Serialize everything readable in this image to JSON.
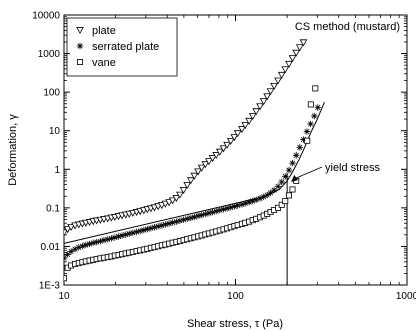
{
  "chart_data": {
    "type": "scatter",
    "title": "",
    "annotation_method": "CS method (mustard)",
    "annotation_yield": "yield stress",
    "xlabel": "Shear stress, τ (Pa)",
    "ylabel": "Deformation, γ",
    "x_scale": "log",
    "y_scale": "log",
    "xlim": [
      10,
      1000
    ],
    "ylim": [
      0.001,
      10000
    ],
    "x_ticks": [
      {
        "value": 10,
        "label": "10"
      },
      {
        "value": 100,
        "label": "100"
      },
      {
        "value": 1000,
        "label": "1000"
      }
    ],
    "y_ticks": [
      {
        "value": 0.001,
        "label": "1E-3"
      },
      {
        "value": 0.01,
        "label": "0.01"
      },
      {
        "value": 0.1,
        "label": "0.1"
      },
      {
        "value": 1,
        "label": "1"
      },
      {
        "value": 10,
        "label": "10"
      },
      {
        "value": 100,
        "label": "100"
      },
      {
        "value": 1000,
        "label": "1000"
      },
      {
        "value": 10000,
        "label": "10000"
      }
    ],
    "grid": false,
    "legend_position": "top-left",
    "yield_stress": 200,
    "series": [
      {
        "name": "plate",
        "marker": "triangle-down",
        "points": [
          [
            10,
            0.023
          ],
          [
            10.5,
            0.028
          ],
          [
            11,
            0.032
          ],
          [
            11.6,
            0.035
          ],
          [
            12.2,
            0.037
          ],
          [
            12.8,
            0.039
          ],
          [
            13.4,
            0.041
          ],
          [
            14.1,
            0.043
          ],
          [
            14.8,
            0.045
          ],
          [
            15.5,
            0.047
          ],
          [
            16.3,
            0.049
          ],
          [
            17.1,
            0.051
          ],
          [
            18,
            0.053
          ],
          [
            18.9,
            0.056
          ],
          [
            19.8,
            0.058
          ],
          [
            20.8,
            0.061
          ],
          [
            21.8,
            0.064
          ],
          [
            22.9,
            0.067
          ],
          [
            24,
            0.07
          ],
          [
            25.2,
            0.074
          ],
          [
            26.5,
            0.078
          ],
          [
            27.8,
            0.082
          ],
          [
            29.2,
            0.087
          ],
          [
            30.6,
            0.092
          ],
          [
            32.1,
            0.097
          ],
          [
            33.7,
            0.103
          ],
          [
            35.4,
            0.11
          ],
          [
            37.2,
            0.118
          ],
          [
            39,
            0.128
          ],
          [
            41,
            0.14
          ],
          [
            43,
            0.156
          ],
          [
            45.2,
            0.18
          ],
          [
            47.4,
            0.22
          ],
          [
            49.8,
            0.29
          ],
          [
            52.3,
            0.39
          ],
          [
            54.9,
            0.52
          ],
          [
            57.6,
            0.68
          ],
          [
            60.5,
            0.88
          ],
          [
            63.5,
            1.1
          ],
          [
            66.7,
            1.35
          ],
          [
            70,
            1.62
          ],
          [
            73.5,
            1.95
          ],
          [
            77.2,
            2.35
          ],
          [
            81,
            2.85
          ],
          [
            85.1,
            3.5
          ],
          [
            89.3,
            4.3
          ],
          [
            93.8,
            5.4
          ],
          [
            98.5,
            6.8
          ],
          [
            103,
            8.6
          ],
          [
            109,
            11
          ],
          [
            114,
            14
          ],
          [
            120,
            18
          ],
          [
            126,
            24
          ],
          [
            132,
            32
          ],
          [
            139,
            43
          ],
          [
            146,
            58
          ],
          [
            153,
            78
          ],
          [
            160,
            105
          ],
          [
            168,
            145
          ],
          [
            177,
            200
          ],
          [
            186,
            280
          ],
          [
            195,
            390
          ],
          [
            205,
            540
          ],
          [
            215,
            760
          ],
          [
            226,
            1050
          ],
          [
            237,
            1450
          ],
          [
            249,
            1950
          ]
        ]
      },
      {
        "name": "serrated plate",
        "marker": "asterisk",
        "points": [
          [
            10,
            0.005
          ],
          [
            10.5,
            0.0062
          ],
          [
            11,
            0.0074
          ],
          [
            11.6,
            0.0085
          ],
          [
            12.2,
            0.0094
          ],
          [
            12.8,
            0.0102
          ],
          [
            13.4,
            0.0109
          ],
          [
            14.1,
            0.0116
          ],
          [
            14.8,
            0.0123
          ],
          [
            15.5,
            0.013
          ],
          [
            16.3,
            0.0137
          ],
          [
            17.1,
            0.0145
          ],
          [
            18,
            0.0153
          ],
          [
            18.9,
            0.0162
          ],
          [
            19.8,
            0.0171
          ],
          [
            20.8,
            0.0181
          ],
          [
            21.8,
            0.0191
          ],
          [
            22.9,
            0.0202
          ],
          [
            24,
            0.0213
          ],
          [
            25.2,
            0.0225
          ],
          [
            26.5,
            0.0238
          ],
          [
            27.8,
            0.0251
          ],
          [
            29.2,
            0.0266
          ],
          [
            30.6,
            0.0281
          ],
          [
            32.1,
            0.0297
          ],
          [
            33.7,
            0.0314
          ],
          [
            35.4,
            0.0332
          ],
          [
            37.2,
            0.0351
          ],
          [
            39,
            0.0371
          ],
          [
            41,
            0.0392
          ],
          [
            43,
            0.0415
          ],
          [
            45.2,
            0.0439
          ],
          [
            47.4,
            0.0464
          ],
          [
            49.8,
            0.0491
          ],
          [
            52.3,
            0.052
          ],
          [
            54.9,
            0.055
          ],
          [
            57.6,
            0.058
          ],
          [
            60.5,
            0.062
          ],
          [
            63.5,
            0.065
          ],
          [
            66.7,
            0.069
          ],
          [
            70,
            0.073
          ],
          [
            73.5,
            0.077
          ],
          [
            77.2,
            0.082
          ],
          [
            81,
            0.087
          ],
          [
            85.1,
            0.092
          ],
          [
            89.3,
            0.097
          ],
          [
            93.8,
            0.103
          ],
          [
            98.5,
            0.109
          ],
          [
            103,
            0.116
          ],
          [
            109,
            0.123
          ],
          [
            114,
            0.131
          ],
          [
            120,
            0.14
          ],
          [
            126,
            0.15
          ],
          [
            132,
            0.162
          ],
          [
            139,
            0.176
          ],
          [
            146,
            0.193
          ],
          [
            153,
            0.215
          ],
          [
            160,
            0.245
          ],
          [
            168,
            0.29
          ],
          [
            177,
            0.36
          ],
          [
            186,
            0.47
          ],
          [
            195,
            0.65
          ],
          [
            205,
            0.95
          ],
          [
            215,
            1.45
          ],
          [
            226,
            2.3
          ],
          [
            237,
            3.7
          ],
          [
            249,
            5.9
          ],
          [
            261,
            9.5
          ],
          [
            274,
            15
          ],
          [
            288,
            24
          ],
          [
            302,
            40
          ]
        ]
      },
      {
        "name": "vane",
        "marker": "square",
        "points": [
          [
            10,
            0.0015
          ],
          [
            10.5,
            0.0028
          ],
          [
            11,
            0.0032
          ],
          [
            11.6,
            0.0035
          ],
          [
            12.2,
            0.0037
          ],
          [
            12.8,
            0.0039
          ],
          [
            13.4,
            0.0041
          ],
          [
            14.1,
            0.0043
          ],
          [
            14.8,
            0.0045
          ],
          [
            15.5,
            0.0047
          ],
          [
            16.3,
            0.0049
          ],
          [
            17.1,
            0.0051
          ],
          [
            18,
            0.0053
          ],
          [
            18.9,
            0.0055
          ],
          [
            19.8,
            0.0058
          ],
          [
            20.8,
            0.006
          ],
          [
            21.8,
            0.0063
          ],
          [
            22.9,
            0.0066
          ],
          [
            24,
            0.0069
          ],
          [
            25.2,
            0.0072
          ],
          [
            26.5,
            0.0076
          ],
          [
            27.8,
            0.0079
          ],
          [
            29.2,
            0.0083
          ],
          [
            30.6,
            0.0087
          ],
          [
            32.1,
            0.0092
          ],
          [
            33.7,
            0.0096
          ],
          [
            35.4,
            0.0101
          ],
          [
            37.2,
            0.0107
          ],
          [
            39,
            0.0112
          ],
          [
            41,
            0.0118
          ],
          [
            43,
            0.0125
          ],
          [
            45.2,
            0.0131
          ],
          [
            47.4,
            0.0138
          ],
          [
            49.8,
            0.0146
          ],
          [
            52.3,
            0.0154
          ],
          [
            54.9,
            0.0163
          ],
          [
            57.6,
            0.0172
          ],
          [
            60.5,
            0.0182
          ],
          [
            63.5,
            0.0193
          ],
          [
            66.7,
            0.0205
          ],
          [
            70,
            0.0217
          ],
          [
            73.5,
            0.023
          ],
          [
            77.2,
            0.0245
          ],
          [
            81,
            0.026
          ],
          [
            85.1,
            0.0277
          ],
          [
            89.3,
            0.0295
          ],
          [
            93.8,
            0.0315
          ],
          [
            98.5,
            0.0336
          ],
          [
            103,
            0.036
          ],
          [
            109,
            0.0385
          ],
          [
            114,
            0.041
          ],
          [
            120,
            0.044
          ],
          [
            126,
            0.048
          ],
          [
            132,
            0.052
          ],
          [
            139,
            0.057
          ],
          [
            146,
            0.063
          ],
          [
            153,
            0.07
          ],
          [
            160,
            0.078
          ],
          [
            168,
            0.088
          ],
          [
            177,
            0.1
          ],
          [
            186,
            0.12
          ],
          [
            195,
            0.15
          ],
          [
            205,
            0.21
          ],
          [
            215,
            0.3
          ],
          [
            226,
            0.5
          ],
          [
            262,
            5.5
          ],
          [
            275,
            48
          ],
          [
            292,
            125
          ]
        ]
      }
    ],
    "fit_line": {
      "points": [
        [
          10,
          0.012
        ],
        [
          150,
          0.2
        ],
        [
          180,
          0.3
        ],
        [
          200,
          0.5
        ],
        [
          215,
          0.85
        ],
        [
          235,
          1.8
        ],
        [
          255,
          4
        ],
        [
          275,
          9
        ],
        [
          300,
          20
        ],
        [
          330,
          55
        ]
      ]
    },
    "yield_marker_line": {
      "x": 200,
      "y_from": 0.001,
      "y_to": 0.8
    }
  }
}
